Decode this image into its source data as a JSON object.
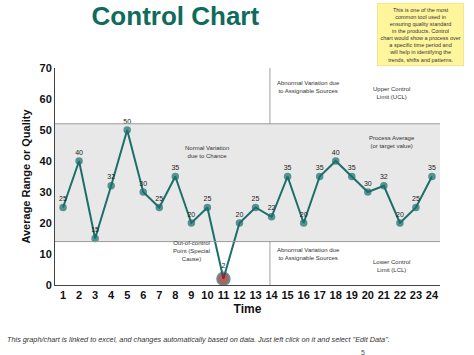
{
  "chart_data": {
    "type": "line",
    "title": "Control Chart",
    "x_label": "Time",
    "y_label": "Average Range or Quality",
    "x": [
      1,
      2,
      3,
      4,
      5,
      6,
      7,
      8,
      9,
      10,
      11,
      12,
      13,
      14,
      15,
      16,
      17,
      18,
      19,
      20,
      21,
      22,
      23,
      24
    ],
    "values": [
      25,
      40,
      15,
      32,
      50,
      30,
      25,
      35,
      20,
      25,
      2,
      20,
      25,
      22,
      35,
      20,
      35,
      40,
      35,
      30,
      32,
      20,
      25,
      35
    ],
    "xlim": [
      0.5,
      24.5
    ],
    "xticks": [
      1,
      2,
      3,
      4,
      5,
      6,
      7,
      8,
      9,
      10,
      11,
      12,
      13,
      14,
      15,
      16,
      17,
      18,
      19,
      20,
      21,
      22,
      23,
      24
    ],
    "ylim": [
      0,
      70
    ],
    "yticks": [
      0,
      10,
      20,
      30,
      40,
      50,
      60,
      70
    ],
    "ucl": 52,
    "lcl": 14,
    "out_of_control_x": [
      11
    ],
    "color": "#1b6f6b",
    "marker": "circle",
    "line_style": "solid",
    "grid": false,
    "data_labels": true,
    "annotations": [
      "Abnormal Variation due\nto Assignable Sources",
      "Upper Control\nLimit (UCL)",
      "Normal Variation\ndue to Chance",
      "Process Average\n(or target value)",
      "Out-of-control\nPoint (Special\nCause)",
      "Abnormal Variation due\nto Assignable Sources",
      "Lower Control\nLimit (LCL)"
    ]
  },
  "note": "This is one of the most\ncommon tool used in\nensuring quality standard\nin the products. Control\nchart would show a process over\na specific time period and\nwill help in identifying the\ntrends, shifts and patterns.",
  "footer": "This graph/chart is linked to excel, and changes automatically based on data. Just left click on it and select \"Edit Data\".",
  "page": 5
}
